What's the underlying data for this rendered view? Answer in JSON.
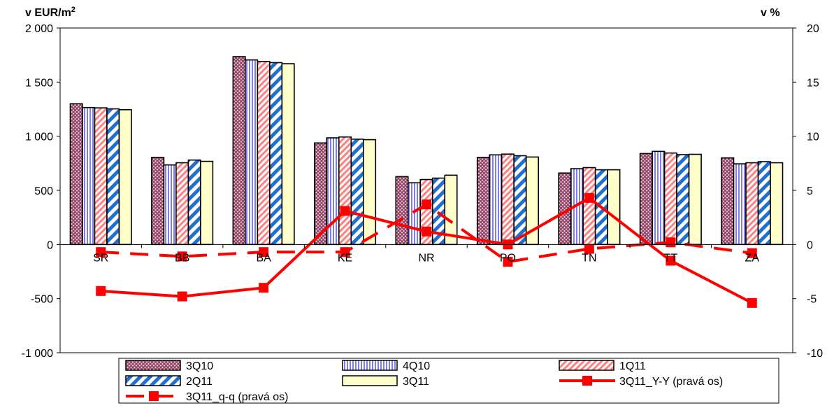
{
  "chart_data": {
    "type": "bar",
    "left_axis_label": "v EUR/m",
    "left_axis_label_sup": "2",
    "right_axis_label": "v %",
    "categories": [
      "SR",
      "BB",
      "BA",
      "KE",
      "NR",
      "PO",
      "TN",
      "TT",
      "ZA"
    ],
    "left_axis": {
      "min": -1000,
      "max": 2000,
      "ticks": [
        -1000,
        -500,
        0,
        500,
        1000,
        1500,
        2000
      ],
      "tick_labels": [
        "-1 000",
        "-500",
        "0",
        "500",
        "1 000",
        "1 500",
        "2 000"
      ]
    },
    "right_axis": {
      "min": -10,
      "max": 20,
      "ticks": [
        -10,
        -5,
        0,
        5,
        10,
        15,
        20
      ],
      "tick_labels": [
        "-10",
        "-5",
        "0",
        "5",
        "10",
        "15",
        "20"
      ]
    },
    "bar_series": [
      {
        "name": "3Q10",
        "pattern": "crosshatch",
        "color": "#a05070",
        "values": [
          1300,
          805,
          1735,
          938,
          627,
          805,
          660,
          840,
          800
        ]
      },
      {
        "name": "4Q10",
        "pattern": "vertical",
        "color": "#8888dd",
        "values": [
          1265,
          735,
          1705,
          985,
          570,
          828,
          700,
          860,
          745
        ]
      },
      {
        "name": "1Q11",
        "pattern": "diagonal-red",
        "color": "#ff8080",
        "values": [
          1262,
          755,
          1690,
          993,
          600,
          835,
          710,
          845,
          755
        ]
      },
      {
        "name": "2Q11",
        "pattern": "diagonal-blue",
        "color": "#1f6fd0",
        "values": [
          1253,
          780,
          1680,
          973,
          613,
          820,
          690,
          830,
          765
        ]
      },
      {
        "name": "3Q11",
        "pattern": "solid",
        "color": "#ffffcc",
        "values": [
          1245,
          768,
          1670,
          968,
          640,
          808,
          690,
          833,
          755
        ]
      }
    ],
    "line_series": [
      {
        "name": "3Q11_Y-Y (pravá os)",
        "style": "solid",
        "color": "#ff0000",
        "values": [
          -4.3,
          -4.8,
          -4.0,
          3.1,
          1.2,
          0.0,
          4.3,
          -1.5,
          -5.4
        ]
      },
      {
        "name": "3Q11_q-q (pravá os)",
        "style": "dashed",
        "color": "#ff0000",
        "values": [
          -0.7,
          -1.1,
          -0.7,
          -0.7,
          3.7,
          -1.6,
          -0.4,
          0.2,
          -0.8
        ]
      }
    ],
    "legend": {
      "placement": "bottom",
      "items": [
        "3Q10",
        "4Q10",
        "1Q11",
        "2Q11",
        "3Q11",
        "3Q11_Y-Y (pravá os)",
        "3Q11_q-q (pravá os)"
      ]
    }
  }
}
